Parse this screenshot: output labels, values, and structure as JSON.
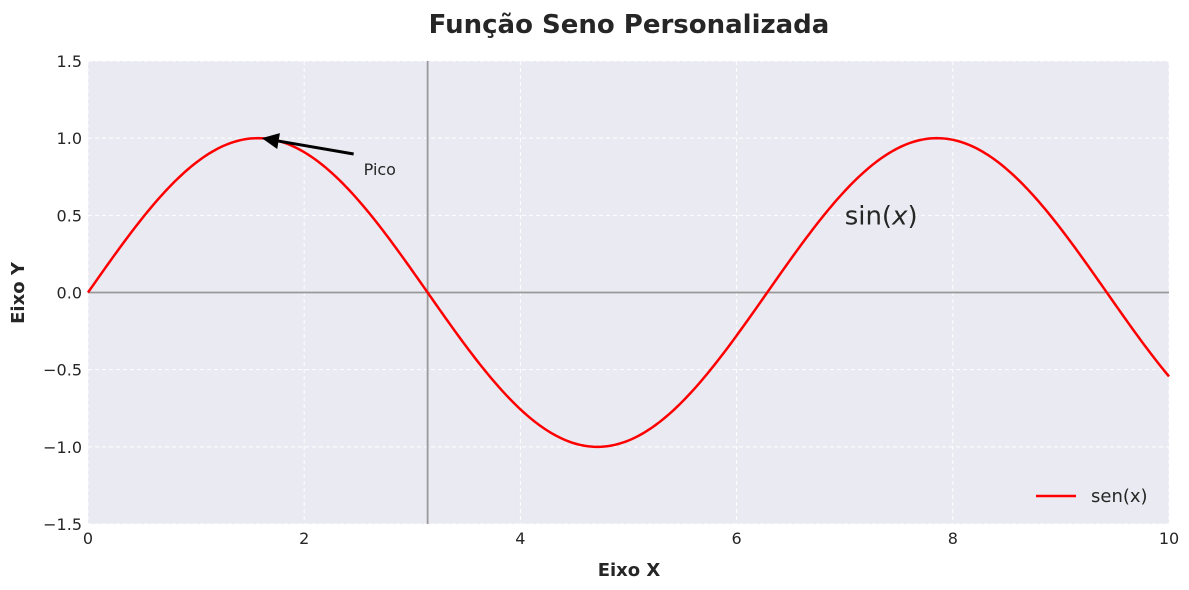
{
  "chart_data": {
    "type": "line",
    "title": "Função Seno Personalizada",
    "xlabel": "Eixo X",
    "ylabel": "Eixo Y",
    "xlim": [
      0,
      10
    ],
    "ylim": [
      -1.5,
      1.5
    ],
    "x_ticks": [
      0,
      2,
      4,
      6,
      8,
      10
    ],
    "x_tick_labels": [
      "0",
      "2",
      "4",
      "6",
      "8",
      "10"
    ],
    "y_ticks": [
      -1.5,
      -1.0,
      -0.5,
      0.0,
      0.5,
      1.0,
      1.5
    ],
    "y_tick_labels": [
      "−1.5",
      "−1.0",
      "−0.5",
      "0.0",
      "0.5",
      "1.0",
      "1.5"
    ],
    "grid": true,
    "legend_position": "lower-right",
    "series": [
      {
        "name": "sen(x)",
        "function": "sin(x)",
        "color": "#ff0000",
        "x": [
          0,
          0.5,
          1.0,
          1.5708,
          2.0,
          2.5,
          3.1416,
          3.5,
          4.0,
          4.7124,
          5.0,
          5.5,
          6.2832,
          7.0,
          7.854,
          8.5,
          9.0,
          9.4248,
          10.0
        ],
        "values": [
          0,
          0.479,
          0.841,
          1.0,
          0.909,
          0.598,
          0,
          -0.351,
          -0.757,
          -1.0,
          -0.959,
          -0.706,
          0,
          0.657,
          1.0,
          0.798,
          0.412,
          0,
          -0.544
        ]
      }
    ],
    "reference_lines": {
      "horizontal_y": 0,
      "vertical_x": 3.1416,
      "color": "#999999"
    },
    "annotations": [
      {
        "text": "Pico",
        "point": [
          1.5708,
          1.0
        ],
        "text_at": [
          2.55,
          0.8
        ]
      }
    ],
    "math_text": {
      "prefix": "sin(",
      "var": "x",
      "suffix": ")",
      "at": [
        7.0,
        0.5
      ]
    },
    "colors": {
      "plot_background": "#eaeaf2",
      "grid": "#ffffff",
      "line": "#ff0000",
      "reference": "#999999",
      "arrow": "#000000"
    }
  }
}
